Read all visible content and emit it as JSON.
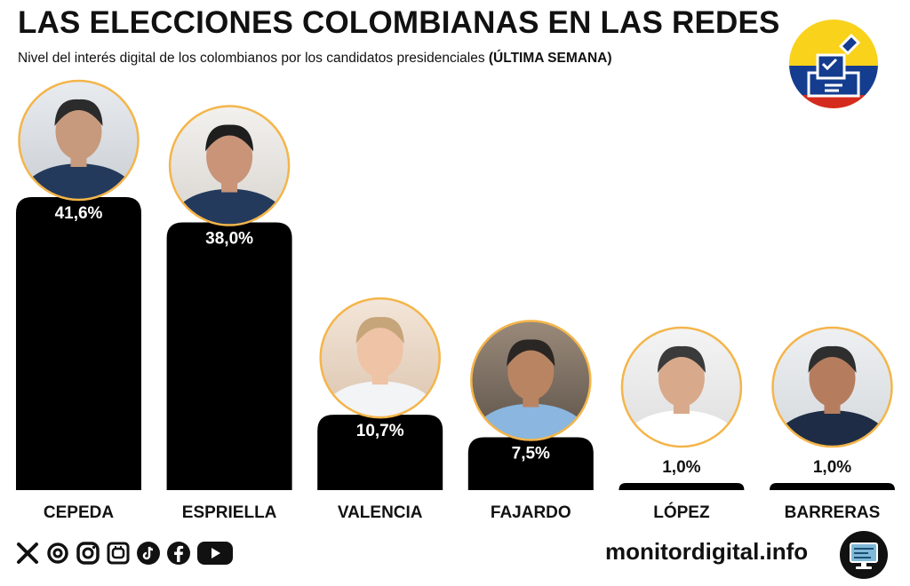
{
  "header": {
    "title": "LAS ELECCIONES COLOMBIANAS EN LAS REDES",
    "subtitle_main": "Nivel del interés digital de los colombianos por los candidatos presidenciales",
    "subtitle_bold": "(ÚLTIMA SEMANA)"
  },
  "chart_data": {
    "type": "bar",
    "title": "LAS ELECCIONES COLOMBIANAS EN LAS REDES",
    "subtitle": "Nivel del interés digital de los colombianos por los candidatos presidenciales (ÚLTIMA SEMANA)",
    "categories": [
      "CEPEDA",
      "ESPRIELLA",
      "VALENCIA",
      "FAJARDO",
      "LÓPEZ",
      "BARRERAS"
    ],
    "values": [
      41.6,
      38.0,
      10.7,
      7.5,
      1.0,
      1.0
    ],
    "value_labels": [
      "41,6%",
      "38,0%",
      "10,7%",
      "7,5%",
      "1,0%",
      "1,0%"
    ],
    "unit": "%",
    "ylim": [
      0,
      41.6
    ],
    "grid": false,
    "legend": "none",
    "bar_color": "#000000",
    "label_color": "#ffffff"
  },
  "colors": {
    "photo_ring": "#f4b54a",
    "flag_yellow": "#f9d21c",
    "flag_blue": "#143c8f",
    "flag_red": "#d52b1e"
  },
  "footer": {
    "social_icons": [
      "x-icon",
      "threads-icon",
      "instagram-icon",
      "kick-icon",
      "tiktok-icon",
      "facebook-icon",
      "youtube-icon"
    ],
    "site": "monitordigital.info"
  }
}
